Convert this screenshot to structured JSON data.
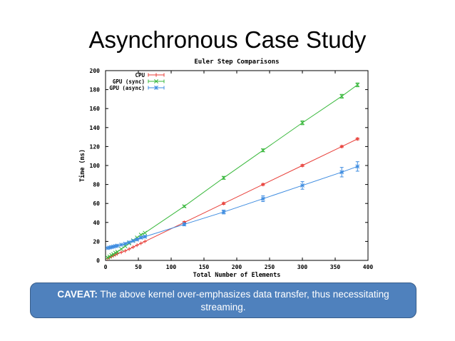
{
  "slide": {
    "title": "Asynchronous Case Study",
    "caveat_label": "CAVEAT:",
    "caveat_text": " The above kernel over-emphasizes data transfer, thus necessitating streaming."
  },
  "colors": {
    "cpu": "#e8403a",
    "gpu_sync": "#39b83c",
    "gpu_async": "#3e8ce0",
    "caveat_fill": "#4f81bd"
  },
  "chart_data": {
    "type": "line",
    "title": "Euler Step Comparisons",
    "xlabel": "Total Number of Elements",
    "ylabel": "Time (ms)",
    "xlim": [
      0,
      400
    ],
    "ylim": [
      0,
      200
    ],
    "x_ticks": [
      0,
      50,
      100,
      150,
      200,
      250,
      300,
      350,
      400
    ],
    "y_ticks": [
      0,
      20,
      40,
      60,
      80,
      100,
      120,
      140,
      160,
      180,
      200
    ],
    "grid": false,
    "legend_position": "top-left",
    "series": [
      {
        "name": "CPU",
        "color": "#e8403a",
        "marker": "plus",
        "points": [
          {
            "x": 3,
            "y": 2,
            "err": 0.5
          },
          {
            "x": 6,
            "y": 3,
            "err": 0.5
          },
          {
            "x": 9,
            "y": 4,
            "err": 0.5
          },
          {
            "x": 12,
            "y": 5,
            "err": 0.5
          },
          {
            "x": 15,
            "y": 6,
            "err": 0.5
          },
          {
            "x": 18,
            "y": 7,
            "err": 0.5
          },
          {
            "x": 24,
            "y": 8.5,
            "err": 0.5
          },
          {
            "x": 30,
            "y": 10,
            "err": 0.5
          },
          {
            "x": 36,
            "y": 12,
            "err": 0.5
          },
          {
            "x": 42,
            "y": 14,
            "err": 0.5
          },
          {
            "x": 48,
            "y": 16,
            "err": 0.5
          },
          {
            "x": 54,
            "y": 18,
            "err": 0.5
          },
          {
            "x": 60,
            "y": 20,
            "err": 0.5
          },
          {
            "x": 120,
            "y": 40,
            "err": 1
          },
          {
            "x": 180,
            "y": 60,
            "err": 1
          },
          {
            "x": 240,
            "y": 80,
            "err": 1
          },
          {
            "x": 300,
            "y": 100,
            "err": 1
          },
          {
            "x": 360,
            "y": 120,
            "err": 1
          },
          {
            "x": 384,
            "y": 128,
            "err": 1
          }
        ]
      },
      {
        "name": "GPU (sync)",
        "color": "#39b83c",
        "marker": "cross",
        "points": [
          {
            "x": 3,
            "y": 3,
            "err": 0.5
          },
          {
            "x": 6,
            "y": 4,
            "err": 0.5
          },
          {
            "x": 9,
            "y": 5.5,
            "err": 0.5
          },
          {
            "x": 12,
            "y": 6.5,
            "err": 0.5
          },
          {
            "x": 15,
            "y": 8,
            "err": 0.5
          },
          {
            "x": 18,
            "y": 9,
            "err": 0.5
          },
          {
            "x": 24,
            "y": 12,
            "err": 0.5
          },
          {
            "x": 30,
            "y": 15,
            "err": 0.5
          },
          {
            "x": 36,
            "y": 18,
            "err": 0.5
          },
          {
            "x": 42,
            "y": 21,
            "err": 0.5
          },
          {
            "x": 48,
            "y": 24,
            "err": 0.5
          },
          {
            "x": 54,
            "y": 27,
            "err": 0.5
          },
          {
            "x": 60,
            "y": 29,
            "err": 0.5
          },
          {
            "x": 120,
            "y": 57,
            "err": 1
          },
          {
            "x": 180,
            "y": 87,
            "err": 1.5
          },
          {
            "x": 240,
            "y": 116,
            "err": 1.5
          },
          {
            "x": 300,
            "y": 145,
            "err": 2
          },
          {
            "x": 360,
            "y": 173,
            "err": 2
          },
          {
            "x": 384,
            "y": 185,
            "err": 2
          }
        ]
      },
      {
        "name": "GPU (async)",
        "color": "#3e8ce0",
        "marker": "star",
        "points": [
          {
            "x": 3,
            "y": 13,
            "err": 0.5
          },
          {
            "x": 6,
            "y": 13.5,
            "err": 0.5
          },
          {
            "x": 9,
            "y": 14,
            "err": 0.5
          },
          {
            "x": 12,
            "y": 14.5,
            "err": 0.5
          },
          {
            "x": 15,
            "y": 15,
            "err": 0.5
          },
          {
            "x": 18,
            "y": 15.5,
            "err": 0.5
          },
          {
            "x": 24,
            "y": 16.5,
            "err": 0.5
          },
          {
            "x": 30,
            "y": 17.5,
            "err": 0.5
          },
          {
            "x": 36,
            "y": 19,
            "err": 0.5
          },
          {
            "x": 42,
            "y": 20.5,
            "err": 0.5
          },
          {
            "x": 48,
            "y": 22,
            "err": 1
          },
          {
            "x": 54,
            "y": 24,
            "err": 1
          },
          {
            "x": 60,
            "y": 25,
            "err": 1
          },
          {
            "x": 120,
            "y": 38,
            "err": 1.5
          },
          {
            "x": 180,
            "y": 51,
            "err": 2
          },
          {
            "x": 240,
            "y": 65,
            "err": 3
          },
          {
            "x": 300,
            "y": 79,
            "err": 4
          },
          {
            "x": 360,
            "y": 93,
            "err": 5
          },
          {
            "x": 384,
            "y": 99,
            "err": 5
          }
        ]
      }
    ]
  }
}
